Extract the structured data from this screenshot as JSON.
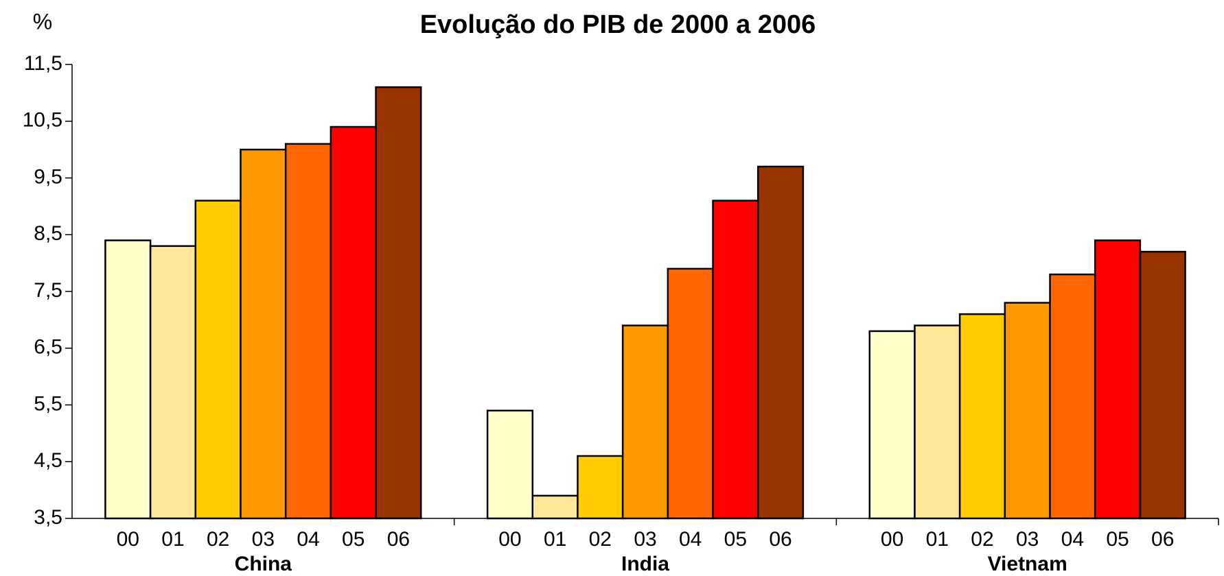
{
  "chart_data": {
    "type": "bar",
    "title": "Evolução do PIB de 2000 a 2006",
    "y_label": "%",
    "categories": [
      "China",
      "India",
      "Vietnam"
    ],
    "series": [
      {
        "name": "00",
        "color": "#FFFFCC",
        "values": [
          8.4,
          5.4,
          6.8
        ]
      },
      {
        "name": "01",
        "color": "#FFE699",
        "values": [
          8.3,
          3.9,
          6.9
        ]
      },
      {
        "name": "02",
        "color": "#FFCC00",
        "values": [
          9.1,
          4.6,
          7.1
        ]
      },
      {
        "name": "03",
        "color": "#FF9900",
        "values": [
          10.0,
          6.9,
          7.3
        ]
      },
      {
        "name": "04",
        "color": "#FF6600",
        "values": [
          10.1,
          7.9,
          7.8
        ]
      },
      {
        "name": "05",
        "color": "#FF0000",
        "values": [
          10.4,
          9.1,
          8.4
        ]
      },
      {
        "name": "06",
        "color": "#993300",
        "values": [
          11.1,
          9.7,
          8.2
        ]
      }
    ],
    "ylim": [
      3.5,
      11.5
    ],
    "yticks": [
      {
        "value": 3.5,
        "label": "3,5"
      },
      {
        "value": 4.5,
        "label": "4,5"
      },
      {
        "value": 5.5,
        "label": "5,5"
      },
      {
        "value": 6.5,
        "label": "6,5"
      },
      {
        "value": 7.5,
        "label": "7,5"
      },
      {
        "value": 8.5,
        "label": "8,5"
      },
      {
        "value": 9.5,
        "label": "9,5"
      },
      {
        "value": 10.5,
        "label": "10,5"
      },
      {
        "value": 11.5,
        "label": "11,5"
      }
    ],
    "grid": false
  }
}
